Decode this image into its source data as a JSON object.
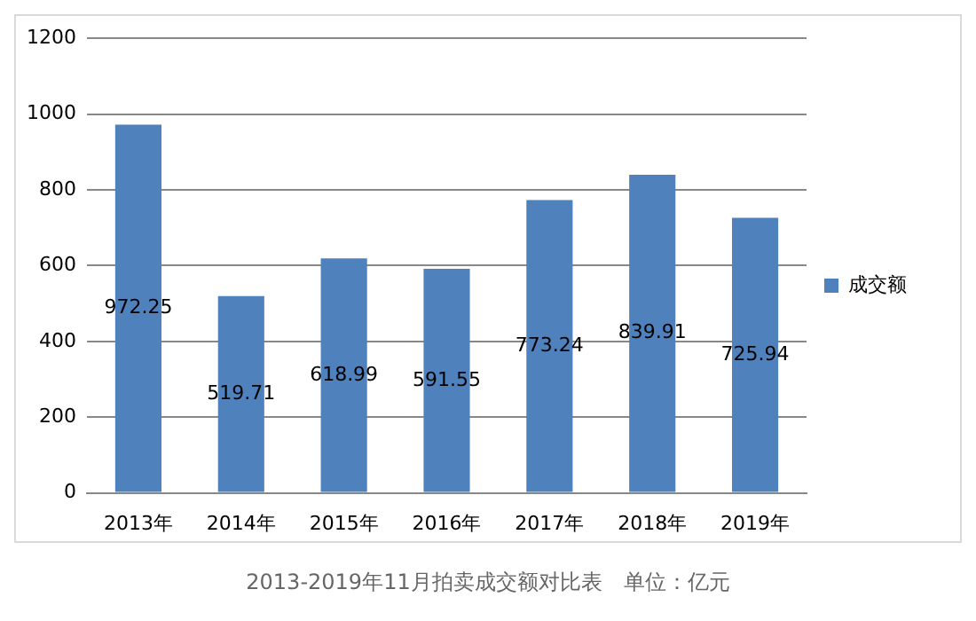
{
  "chart_data": {
    "type": "bar",
    "categories": [
      "2013年",
      "2014年",
      "2015年",
      "2016年",
      "2017年",
      "2018年",
      "2019年"
    ],
    "series": [
      {
        "name": "成交额",
        "color": "#4f81bd",
        "values": [
          972.25,
          519.71,
          618.99,
          591.55,
          773.24,
          839.91,
          725.94
        ]
      }
    ],
    "ylim": [
      0,
      1200
    ],
    "yticks": [
      0,
      200,
      400,
      600,
      800,
      1000,
      1200
    ],
    "grid": "y",
    "legend": "right",
    "data_labels": true,
    "annotations": [
      "2013-2019年11月拍卖成交额对比表　单位：亿元"
    ]
  }
}
